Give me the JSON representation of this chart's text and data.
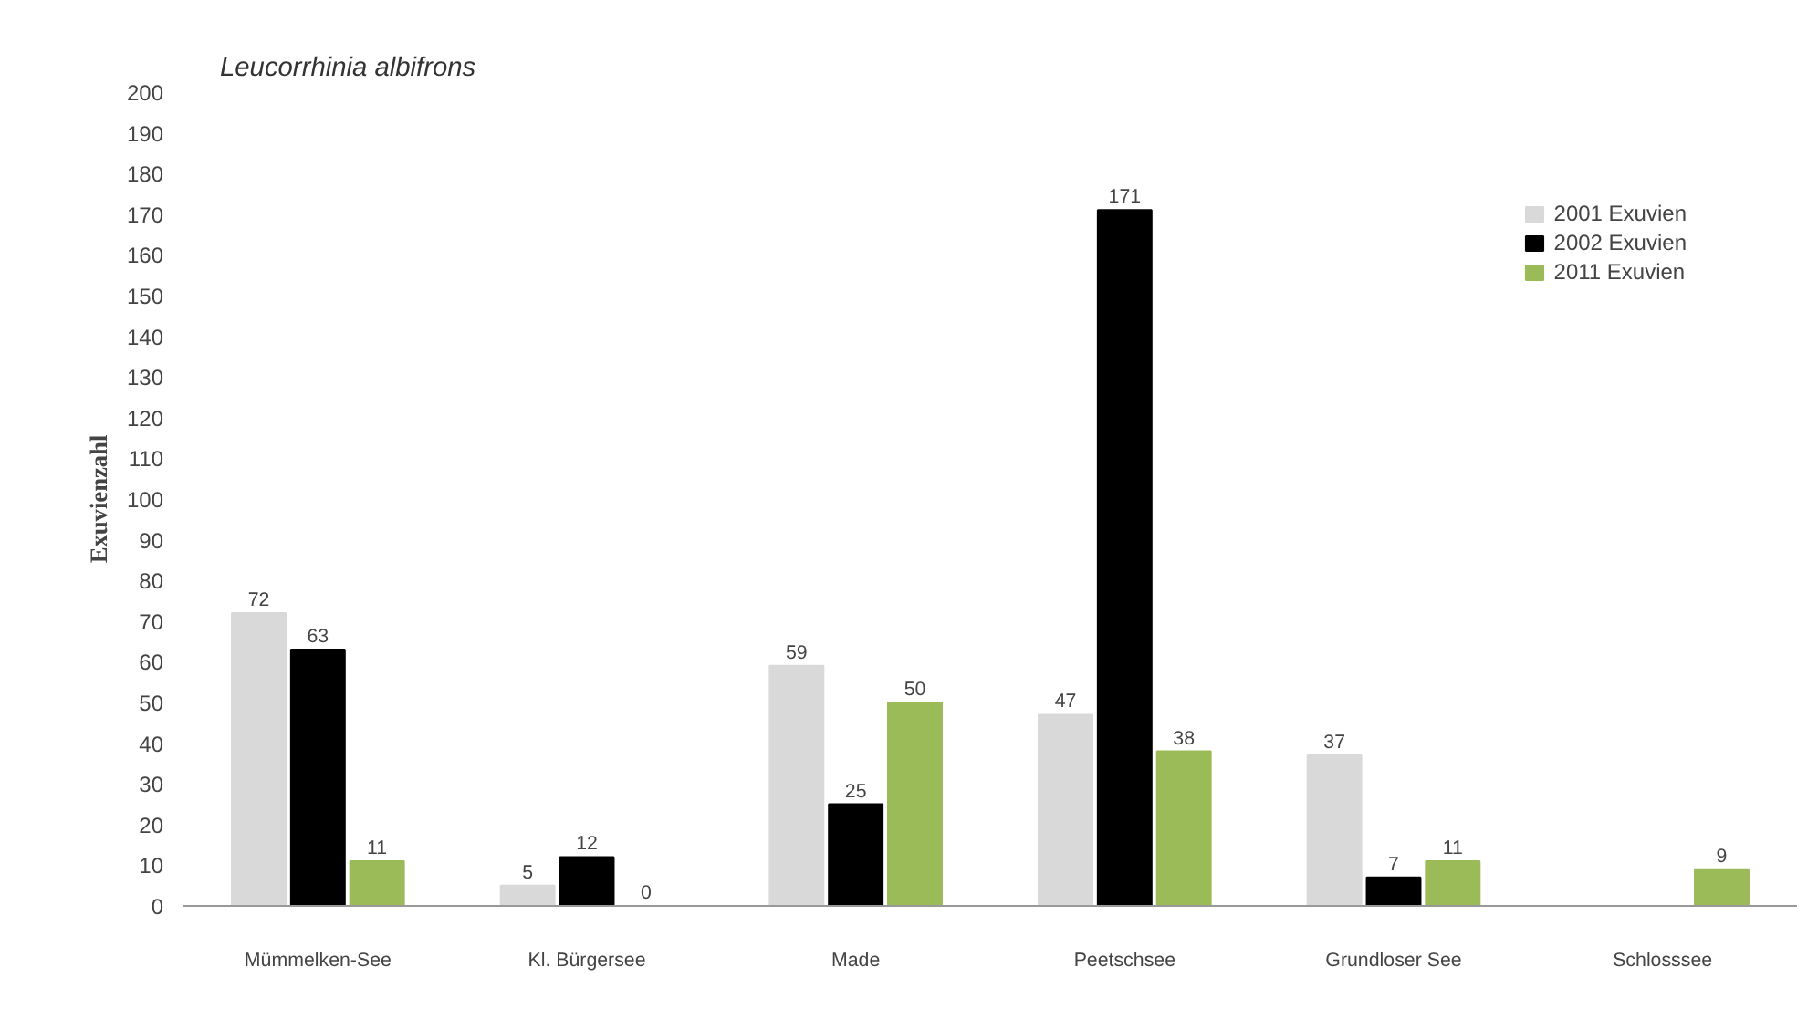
{
  "chart_data": {
    "type": "bar",
    "title": "Leucorrhinia albifrons",
    "ylabel": "Exuvienzahl",
    "categories": [
      "Mümmelken-See",
      "Kl. Bürgersee",
      "Made",
      "Peetschsee",
      "Grundloser See",
      "Schlosssee"
    ],
    "series": [
      {
        "name": "2001 Exuvien",
        "color": "#d9d9d9",
        "values": [
          72,
          5,
          59,
          47,
          37,
          null
        ]
      },
      {
        "name": "2002 Exuvien",
        "color": "#000000",
        "values": [
          63,
          12,
          25,
          171,
          7,
          null
        ]
      },
      {
        "name": "2011 Exuvien",
        "color": "#9bbb59",
        "values": [
          11,
          0,
          50,
          38,
          11,
          9
        ]
      }
    ],
    "ylim": [
      0,
      200
    ],
    "yticks": [
      0,
      10,
      20,
      30,
      40,
      50,
      60,
      70,
      80,
      90,
      100,
      110,
      120,
      130,
      140,
      150,
      160,
      170,
      180,
      190,
      200
    ],
    "grid": false,
    "legend": "top right",
    "data_labels": true
  }
}
